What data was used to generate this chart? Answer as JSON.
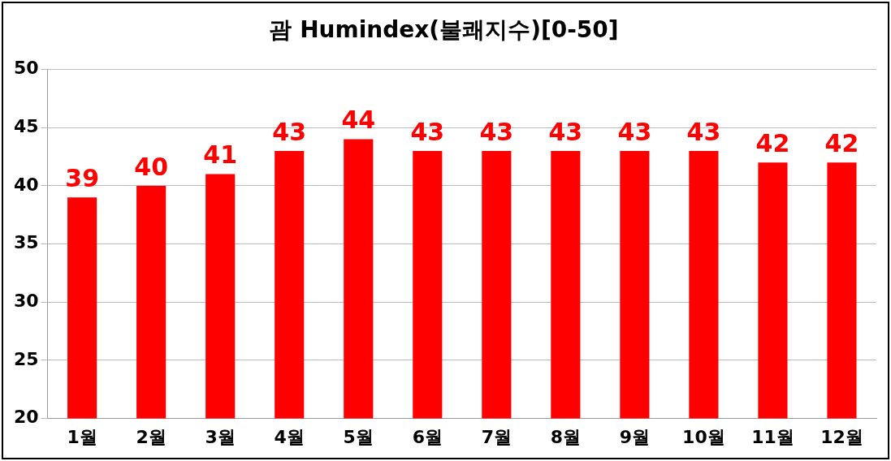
{
  "chart_data": {
    "type": "bar",
    "title": "괌 Humindex(불쾌지수)[0-50]",
    "categories": [
      "1월",
      "2월",
      "3월",
      "4월",
      "5월",
      "6월",
      "7월",
      "8월",
      "9월",
      "10월",
      "11월",
      "12월"
    ],
    "values": [
      39,
      40,
      41,
      43,
      44,
      43,
      43,
      43,
      43,
      43,
      42,
      42
    ],
    "color": "#ff0000",
    "ylim": [
      20,
      50
    ],
    "yticks": [
      20,
      25,
      30,
      35,
      40,
      45,
      50
    ],
    "grid": "y",
    "data_labels": true,
    "legend": false
  }
}
